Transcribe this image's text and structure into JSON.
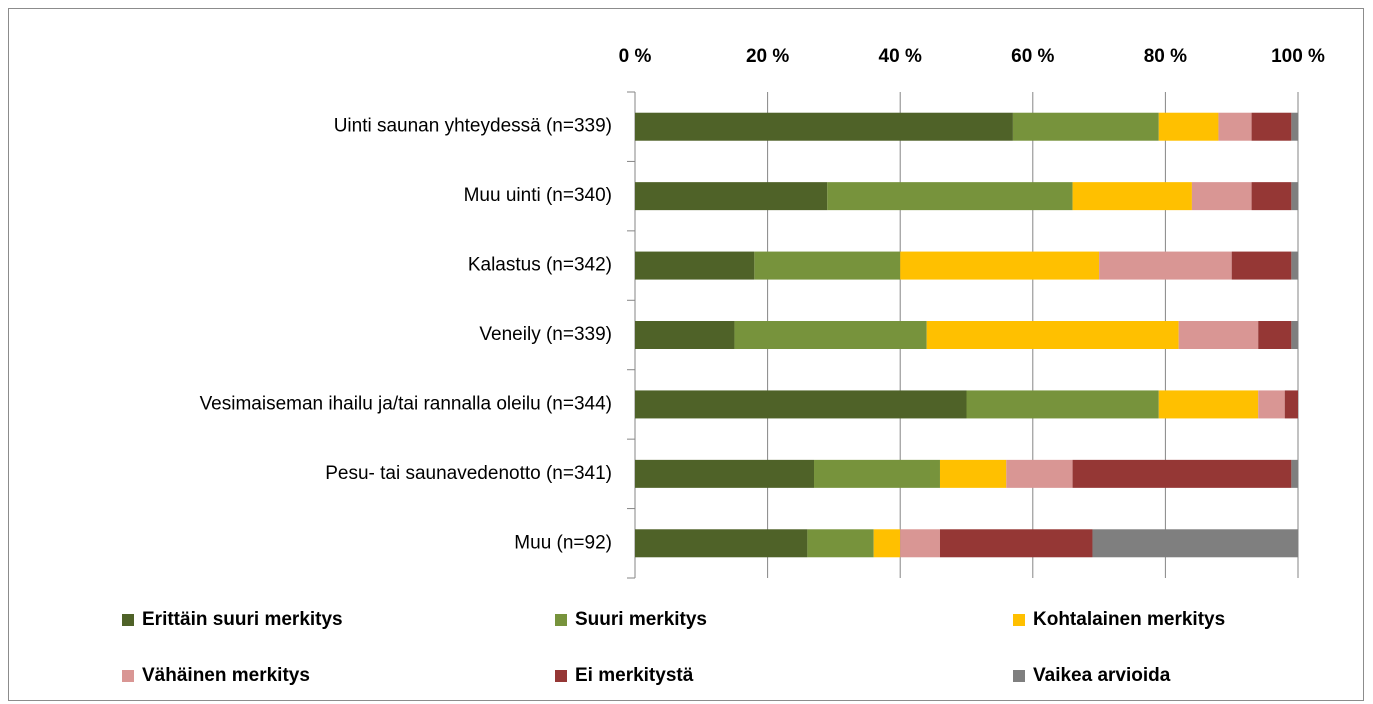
{
  "chart_data": {
    "type": "stacked_bar_horizontal",
    "categories": [
      "Uinti saunan yhteydessä (n=339)",
      "Muu uinti (n=340)",
      "Kalastus (n=342)",
      "Veneily (n=339)",
      "Vesimaiseman ihailu ja/tai rannalla oleilu (n=344)",
      "Pesu- tai saunavedenotto (n=341)",
      "Muu (n=92)"
    ],
    "series": [
      {
        "name": "Erittäin suuri merkitys",
        "color": "#4f6228",
        "values": [
          57,
          29,
          18,
          15,
          50,
          27,
          26
        ]
      },
      {
        "name": "Suuri merkitys",
        "color": "#77933c",
        "values": [
          22,
          37,
          22,
          29,
          29,
          19,
          10
        ]
      },
      {
        "name": "Kohtalainen merkitys",
        "color": "#ffc000",
        "values": [
          9,
          18,
          30,
          38,
          15,
          10,
          4
        ]
      },
      {
        "name": "Vähäinen merkitys",
        "color": "#d99694",
        "values": [
          5,
          9,
          20,
          12,
          4,
          10,
          6
        ]
      },
      {
        "name": "Ei merkitystä",
        "color": "#953735",
        "values": [
          6,
          6,
          9,
          5,
          2,
          33,
          23
        ]
      },
      {
        "name": "Vaikea arvioida",
        "color": "#7f7f7f",
        "values": [
          1,
          1,
          1,
          1,
          0,
          1,
          31
        ]
      }
    ],
    "xlim": [
      0,
      100
    ],
    "xticks": [
      {
        "value": 0,
        "label": "0 %"
      },
      {
        "value": 20,
        "label": "20 %"
      },
      {
        "value": 40,
        "label": "40 %"
      },
      {
        "value": 60,
        "label": "60 %"
      },
      {
        "value": 80,
        "label": "80 %"
      },
      {
        "value": 100,
        "label": "100 %"
      }
    ],
    "grid": true,
    "legend": "bottom"
  }
}
